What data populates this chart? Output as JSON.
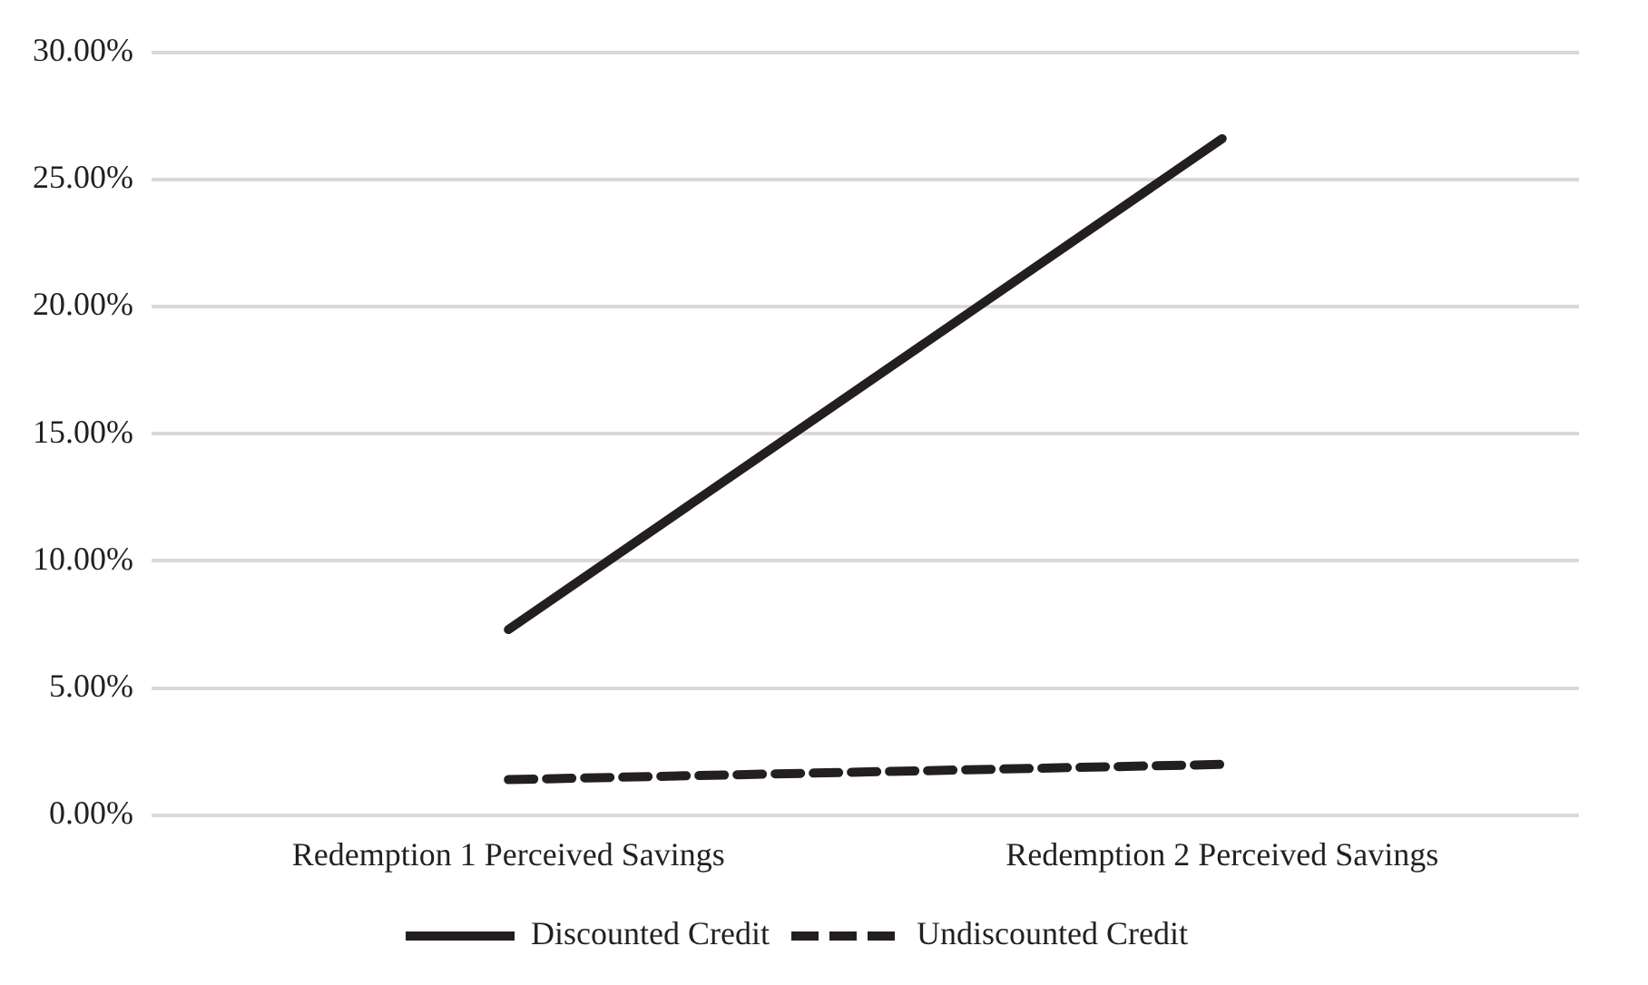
{
  "chart_data": {
    "type": "line",
    "categories": [
      "Redemption 1 Perceived Savings",
      "Redemption 2 Perceived Savings"
    ],
    "series": [
      {
        "name": "Discounted Credit",
        "color": "#231f20",
        "values": [
          7.3,
          26.6
        ],
        "line_style": "solid"
      },
      {
        "name": "Undiscounted Credit",
        "color": "#231f20",
        "values": [
          1.4,
          2.0
        ],
        "line_style": "dashed"
      }
    ],
    "ylim": [
      0,
      30
    ],
    "yticks": [
      {
        "value": 0,
        "label": "0.00%"
      },
      {
        "value": 5,
        "label": "5.00%"
      },
      {
        "value": 10,
        "label": "10.00%"
      },
      {
        "value": 15,
        "label": "15.00%"
      },
      {
        "value": 20,
        "label": "20.00%"
      },
      {
        "value": 25,
        "label": "25.00%"
      },
      {
        "value": 30,
        "label": "30.00%"
      }
    ],
    "grid": "y",
    "legend": "bottom",
    "marker": "none"
  }
}
